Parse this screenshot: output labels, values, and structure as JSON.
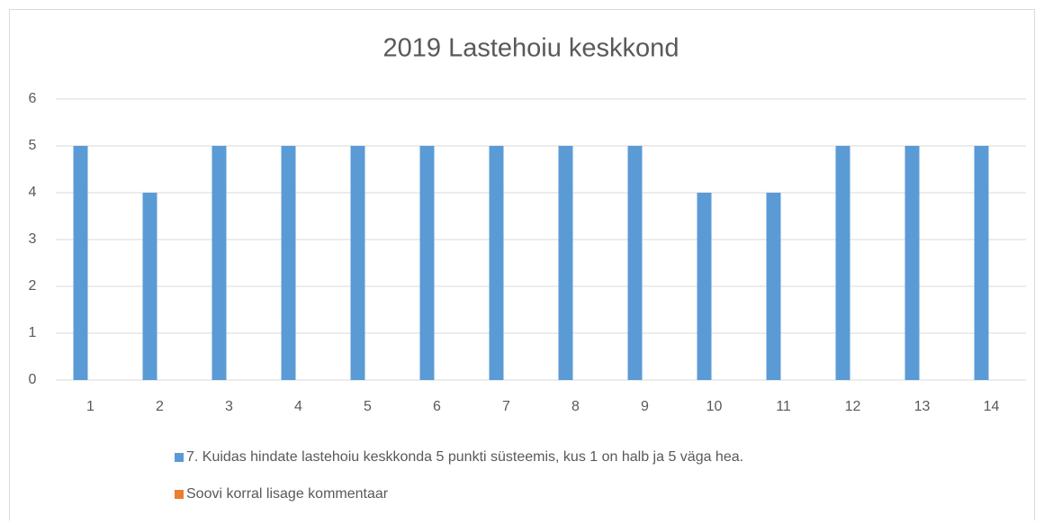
{
  "chart_data": {
    "type": "bar",
    "title": "2019 Lastehoiu keskkond",
    "categories": [
      "1",
      "2",
      "3",
      "4",
      "5",
      "6",
      "7",
      "8",
      "9",
      "10",
      "11",
      "12",
      "13",
      "14"
    ],
    "series": [
      {
        "name": "7. Kuidas hindate lastehoiu keskkonda 5 punkti süsteemis, kus 1 on halb ja 5 väga hea.",
        "color": "#5b9bd5",
        "values": [
          5,
          4,
          5,
          5,
          5,
          5,
          5,
          5,
          5,
          4,
          4,
          5,
          5,
          5
        ]
      },
      {
        "name": "Soovi korral lisage kommentaar",
        "color": "#ed7d31",
        "values": [
          null,
          null,
          null,
          null,
          null,
          null,
          null,
          null,
          null,
          null,
          null,
          null,
          null,
          null
        ]
      }
    ],
    "ylim": [
      0,
      6
    ],
    "yticks": [
      0,
      1,
      2,
      3,
      4,
      5,
      6
    ],
    "grid": true,
    "legend": "bottom"
  }
}
